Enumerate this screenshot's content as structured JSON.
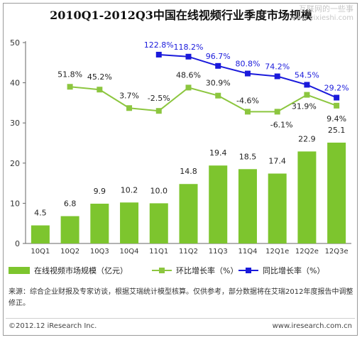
{
  "chart_data": {
    "type": "bar",
    "title": "2010Q1-2012Q3中国在线视频行业季度市场规模",
    "categories": [
      "10Q1",
      "10Q2",
      "10Q3",
      "10Q4",
      "11Q1",
      "11Q2",
      "11Q3",
      "11Q4",
      "12Q1e",
      "12Q2e",
      "12Q3e"
    ],
    "ylim": [
      0,
      50
    ],
    "yticks": [
      0,
      10,
      20,
      30,
      40,
      50
    ],
    "grid": false,
    "legend_position": "bottom",
    "series": [
      {
        "name": "在线视频市场规模（亿元）",
        "kind": "bar",
        "color": "#7dc52e",
        "values": [
          4.5,
          6.8,
          9.9,
          10.2,
          10.0,
          14.8,
          19.4,
          18.5,
          17.4,
          22.9,
          25.1
        ],
        "labels": [
          "4.5",
          "6.8",
          "9.9",
          "10.2",
          "10.0",
          "14.8",
          "19.4",
          "18.5",
          "17.4",
          "22.9",
          "25.1"
        ]
      },
      {
        "name": "环比增长率（%）",
        "kind": "line",
        "color": "#8cc63f",
        "plotted_y": [
          null,
          39.0,
          38.3,
          33.7,
          33.0,
          38.8,
          36.8,
          32.8,
          32.8,
          37.0,
          34.3
        ],
        "labels": [
          "",
          "51.8%",
          "45.2%",
          "3.7%",
          "-2.5%",
          "48.6%",
          "30.9%",
          "-4.6%",
          "-6.1%",
          "31.9%",
          "9.4%"
        ]
      },
      {
        "name": "同比增长率（%）",
        "kind": "line",
        "color": "#1a1adb",
        "plotted_y": [
          null,
          null,
          null,
          null,
          47.0,
          46.5,
          44.2,
          42.3,
          41.6,
          39.5,
          36.3
        ],
        "labels": [
          "",
          "",
          "",
          "",
          "122.8%",
          "118.2%",
          "96.7%",
          "80.8%",
          "74.2%",
          "54.5%",
          "29.2%"
        ]
      }
    ]
  },
  "watermark": {
    "line1": "互联网的一些事",
    "line2": "www.yixieshi.com"
  },
  "source_note": "来源：综合企业财报及专家访谈，根据艾瑞统计模型核算。仅供参考，部分数据将在艾瑞2012年度报告中调整修正。",
  "copyright": "©2012.12 iResearch Inc.",
  "website": "www.iresearch.com.cn"
}
